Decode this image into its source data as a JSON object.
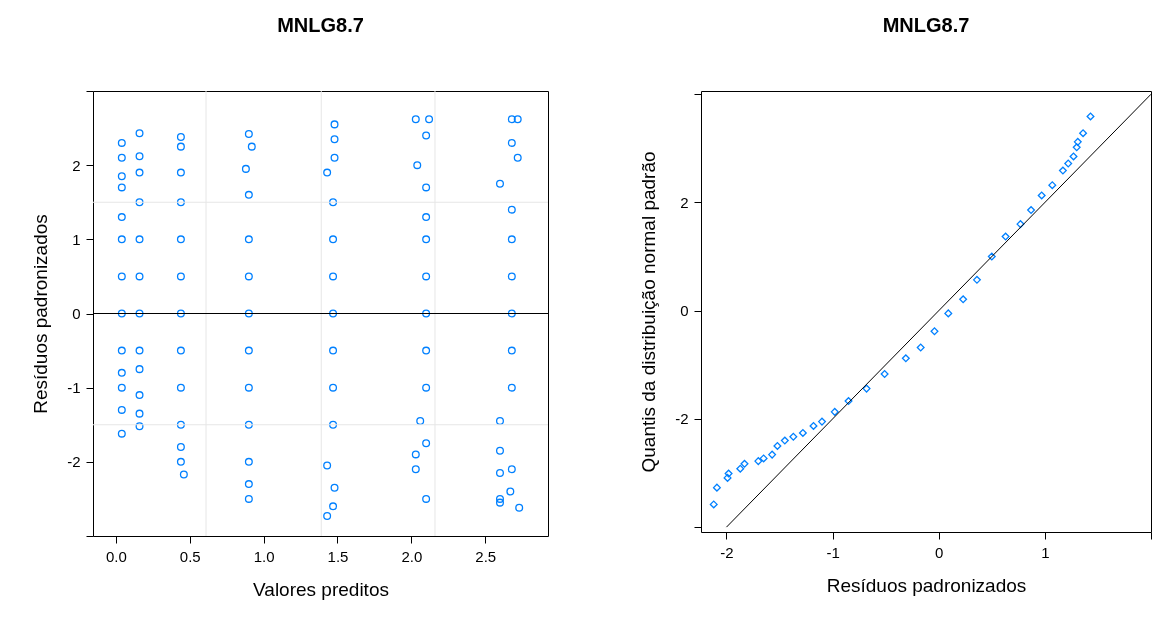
{
  "chart_data": [
    {
      "type": "scatter",
      "title": "MNLG8.7",
      "xlabel": "Valores preditos",
      "ylabel": "Resíduos padronizados",
      "marker": "circle",
      "xlim": [
        -0.155,
        2.925
      ],
      "ylim": [
        -3,
        3
      ],
      "xticks": [
        {
          "value": 0,
          "label": "0.0"
        },
        {
          "value": 0.5,
          "label": "0.5"
        },
        {
          "value": 1,
          "label": "1.0"
        },
        {
          "value": 1.5,
          "label": "1.5"
        },
        {
          "value": 2,
          "label": "2.0"
        },
        {
          "value": 2.5,
          "label": "2.5"
        }
      ],
      "yticks": [
        {
          "value": -3,
          "label": null
        },
        -2,
        -1,
        0,
        1,
        2,
        {
          "value": 3,
          "label": null
        }
      ],
      "ref_lines": [
        {
          "axis": "x",
          "value": 0.61,
          "color": "#e6e6e6"
        },
        {
          "axis": "x",
          "value": 1.39,
          "color": "#e6e6e6"
        },
        {
          "axis": "x",
          "value": 2.16,
          "color": "#e6e6e6"
        },
        {
          "axis": "y",
          "value": 1.5,
          "color": "#e6e6e6"
        },
        {
          "axis": "y",
          "value": -1.5,
          "color": "#e6e6e6"
        },
        {
          "axis": "y",
          "value": 0,
          "color": "#000000"
        }
      ],
      "series": [
        {
          "color": "#0080ff",
          "x": [
            0.04,
            0.04,
            0.04,
            0.04,
            0.04,
            0.04,
            0.04,
            0.04,
            0.04,
            0.04,
            0.04,
            0.04,
            0.04,
            0.16,
            0.16,
            0.16,
            0.16,
            0.16,
            0.16,
            0.16,
            0.16,
            0.16,
            0.16,
            0.16,
            0.16,
            0.44,
            0.44,
            0.44,
            0.44,
            0.44,
            0.44,
            0.44,
            0.44,
            0.44,
            0.44,
            0.44,
            0.44,
            0.46,
            0.9,
            0.92,
            0.88,
            0.9,
            0.9,
            0.9,
            0.9,
            0.9,
            0.9,
            0.9,
            0.9,
            0.9,
            0.9,
            1.48,
            1.48,
            1.48,
            1.43,
            1.47,
            1.47,
            1.47,
            1.47,
            1.47,
            1.47,
            1.47,
            1.43,
            1.48,
            1.47,
            1.43,
            2.03,
            2.12,
            2.1,
            2.04,
            2.1,
            2.1,
            2.1,
            2.1,
            2.1,
            2.1,
            2.1,
            2.06,
            2.03,
            2.03,
            2.1,
            2.1,
            2.68,
            2.72,
            2.68,
            2.72,
            2.6,
            2.68,
            2.68,
            2.68,
            2.68,
            2.68,
            2.68,
            2.6,
            2.6,
            2.6,
            2.6,
            2.6,
            2.67,
            2.68,
            2.73
          ],
          "values": [
            2.3,
            2.1,
            1.85,
            1.7,
            1.3,
            1.0,
            0.5,
            0.0,
            -0.5,
            -0.8,
            -1.0,
            -1.3,
            -1.62,
            2.43,
            2.12,
            1.9,
            1.5,
            1.0,
            0.5,
            0.0,
            -0.5,
            -0.75,
            -1.1,
            -1.35,
            -1.52,
            2.38,
            2.25,
            1.9,
            1.5,
            1.0,
            0.5,
            0.0,
            -0.5,
            -1.0,
            -1.5,
            -1.8,
            -2.0,
            -2.17,
            2.42,
            2.25,
            1.95,
            1.6,
            1.0,
            0.5,
            0.0,
            -0.5,
            -1.0,
            -1.5,
            -2.0,
            -2.3,
            -2.5,
            2.55,
            2.35,
            2.1,
            1.9,
            1.5,
            1.0,
            0.5,
            0.0,
            -0.5,
            -1.0,
            -1.5,
            -2.05,
            -2.35,
            -2.6,
            -2.73,
            2.62,
            2.62,
            2.4,
            2.0,
            1.7,
            1.3,
            1.0,
            0.5,
            0.0,
            -0.5,
            -1.0,
            -1.45,
            -1.9,
            -2.1,
            -1.75,
            -2.5,
            2.62,
            2.62,
            2.3,
            2.1,
            1.75,
            1.4,
            1.0,
            0.5,
            0.0,
            -0.5,
            -1.0,
            -1.45,
            -1.85,
            -2.15,
            -2.5,
            -2.55,
            -2.4,
            -2.1,
            -2.62
          ]
        }
      ]
    },
    {
      "type": "scatter",
      "title": "MNLG8.7",
      "xlabel": "Resíduos padronizados",
      "ylabel": "Quantis da distribuição normal padrão",
      "xlim": [
        -2.24,
        2.0
      ],
      "ylim": [
        -4.09,
        4.06
      ],
      "xticks": [
        -2,
        -1,
        0,
        1,
        {
          "value": 2,
          "label": null
        }
      ],
      "yticks": [
        {
          "value": -4,
          "label": null
        },
        -2,
        0,
        2,
        {
          "value": 4,
          "label": null
        }
      ],
      "series": [
        {
          "color": "#0080ff",
          "marker": "diamond",
          "x": [
            -2.12,
            -2.09,
            -1.99,
            -1.98,
            -1.87,
            -1.83,
            -1.7,
            -1.65,
            -1.57,
            -1.52,
            -1.45,
            -1.37,
            -1.28,
            -1.18,
            -1.1,
            -0.98,
            -0.85,
            -0.68,
            -0.51,
            -0.31,
            -0.17,
            -0.04,
            0.09,
            0.23,
            0.36,
            0.5,
            0.63,
            0.77,
            0.87,
            0.97,
            1.07,
            1.17,
            1.22,
            1.27,
            1.3,
            1.31,
            1.36,
            1.43
          ],
          "values": [
            -3.58,
            -3.27,
            -3.09,
            -3.01,
            -2.92,
            -2.83,
            -2.78,
            -2.73,
            -2.66,
            -2.5,
            -2.4,
            -2.33,
            -2.26,
            -2.13,
            -2.05,
            -1.87,
            -1.67,
            -1.44,
            -1.17,
            -0.88,
            -0.68,
            -0.38,
            -0.05,
            0.21,
            0.57,
            1.0,
            1.37,
            1.6,
            1.86,
            2.13,
            2.32,
            2.59,
            2.72,
            2.85,
            3.02,
            3.12,
            3.28,
            3.59
          ]
        },
        {
          "type": "line",
          "marker": "none",
          "color": "#000000",
          "x": [
            -2,
            2
          ],
          "values": [
            -4,
            4
          ]
        }
      ]
    }
  ]
}
